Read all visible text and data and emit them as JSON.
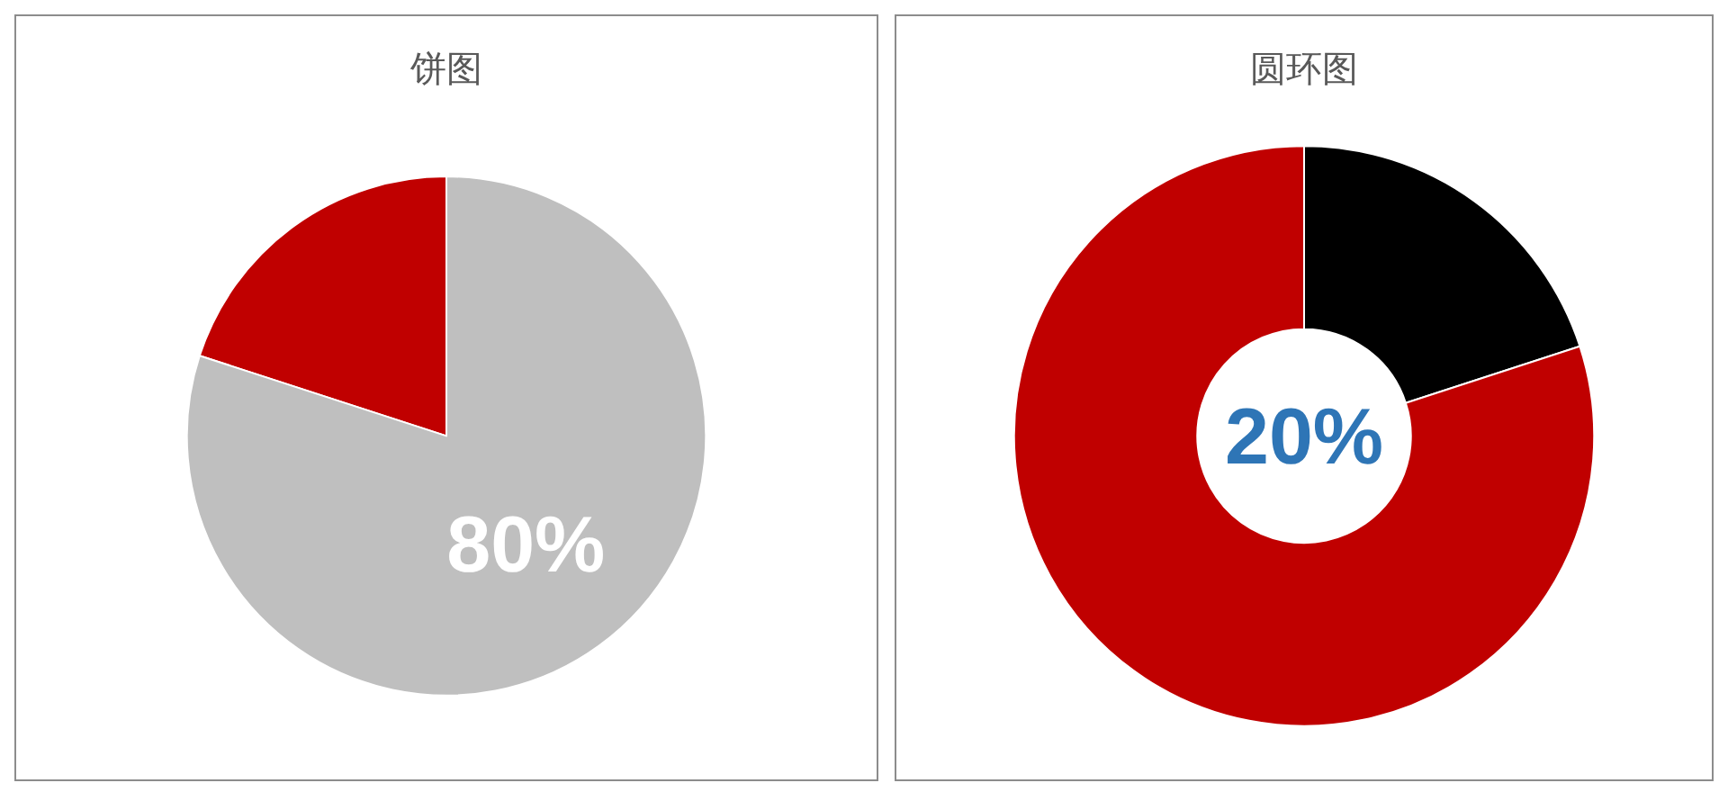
{
  "chart_data": [
    {
      "type": "pie",
      "title": "饼图",
      "categories": [
        null,
        null
      ],
      "values": [
        20,
        80
      ],
      "colors": [
        "#c00000",
        "#bfbfbf"
      ],
      "value_labels": [
        null,
        "80%"
      ]
    },
    {
      "type": "donut",
      "title": "圆环图",
      "categories": [
        null,
        null
      ],
      "values": [
        20,
        80
      ],
      "colors": [
        "#000000",
        "#c00000"
      ],
      "annotations": [
        "20%"
      ]
    }
  ]
}
